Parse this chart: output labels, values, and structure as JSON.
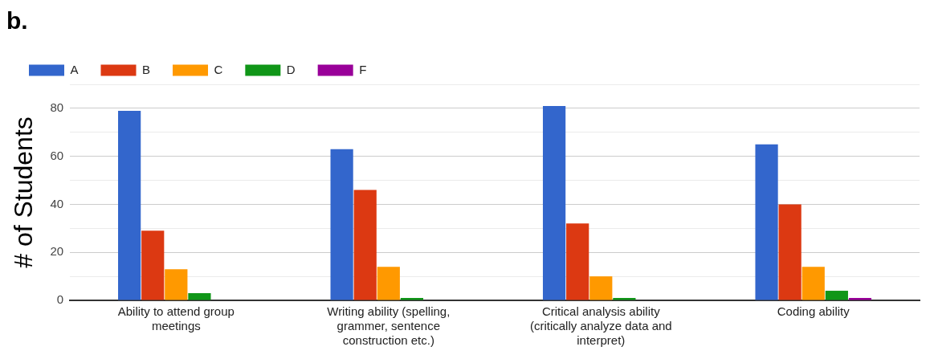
{
  "chart_data": {
    "type": "bar",
    "title": "b.",
    "ylabel": "# of Students",
    "categories": [
      "Ability to attend group meetings",
      "Writing ability (spelling, grammer, sentence construction etc.)",
      "Critical analysis ability (critically analyze data and interpret)",
      "Coding ability"
    ],
    "series": [
      {
        "name": "A",
        "color": "#3366cc",
        "values": [
          79,
          63,
          81,
          65
        ]
      },
      {
        "name": "B",
        "color": "#dc3912",
        "values": [
          29,
          46,
          32,
          40
        ]
      },
      {
        "name": "C",
        "color": "#ff9900",
        "values": [
          13,
          14,
          10,
          14
        ]
      },
      {
        "name": "D",
        "color": "#109618",
        "values": [
          3,
          1,
          1,
          4
        ]
      },
      {
        "name": "F",
        "color": "#990099",
        "values": [
          0,
          0,
          0,
          1
        ]
      }
    ],
    "ylim": [
      0,
      90
    ],
    "yticks": [
      0,
      {
        "value": 10,
        "label": null
      },
      20,
      {
        "value": 30,
        "label": null
      },
      40,
      {
        "value": 50,
        "label": null
      },
      60,
      {
        "value": 70,
        "label": null
      },
      80,
      {
        "value": 90,
        "label": null
      }
    ],
    "grid": "y",
    "legend": "top left"
  }
}
